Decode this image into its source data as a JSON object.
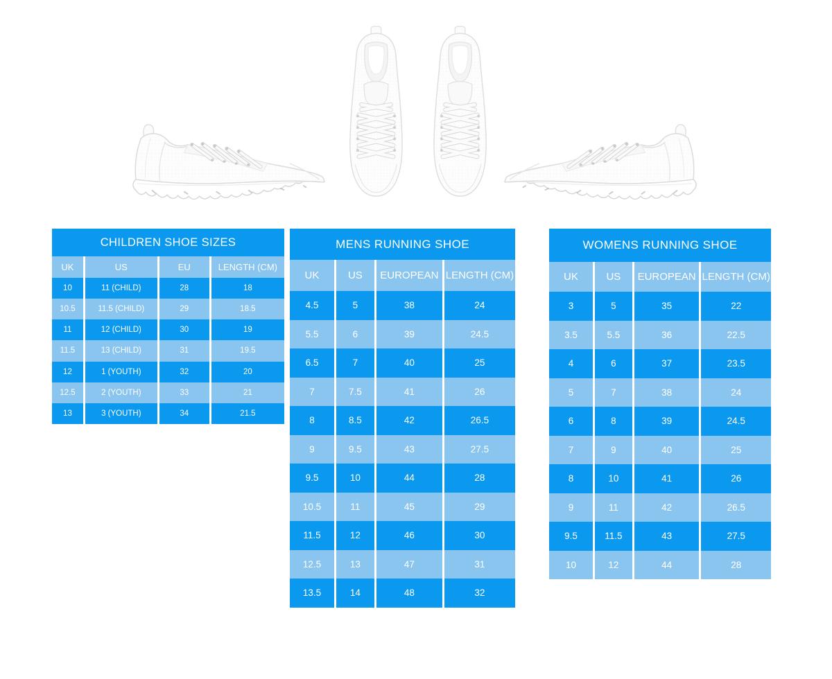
{
  "page": {
    "background": "#ffffff",
    "description": "Shoe size chart sheet with white running-shoe product photos"
  },
  "colors": {
    "primary_blue": "#0b99f0",
    "light_blue": "#8ac5ef",
    "table_text": "#ffffff",
    "separator": "#ffffff"
  },
  "gallery": {
    "left_shoe_alt": "white running shoe side view, toe facing right",
    "center_pair_alt": "pair of white running shoes, top view, toes down",
    "right_shoe_alt": "white running shoe side view, toe facing left"
  },
  "tables": [
    {
      "id": "children",
      "title": "CHILDREN SHOE SIZES",
      "headers": [
        "UK",
        "US",
        "EU",
        "LENGTH (CM)"
      ],
      "rows": [
        [
          "10",
          "11 (CHILD)",
          "28",
          "18"
        ],
        [
          "10.5",
          "11.5 (CHILD)",
          "29",
          "18.5"
        ],
        [
          "11",
          "12 (CHILD)",
          "30",
          "19"
        ],
        [
          "11.5",
          "13 (CHILD)",
          "31",
          "19.5"
        ],
        [
          "12",
          "1 (YOUTH)",
          "32",
          "20"
        ],
        [
          "12.5",
          "2 (YOUTH)",
          "33",
          "21"
        ],
        [
          "13",
          "3 (YOUTH)",
          "34",
          "21.5"
        ]
      ]
    },
    {
      "id": "mens",
      "title": "MENS RUNNING SHOE",
      "headers": [
        "UK",
        "US",
        "EUROPEAN",
        "LENGTH (CM)"
      ],
      "rows": [
        [
          "4.5",
          "5",
          "38",
          "24"
        ],
        [
          "5.5",
          "6",
          "39",
          "24.5"
        ],
        [
          "6.5",
          "7",
          "40",
          "25"
        ],
        [
          "7",
          "7.5",
          "41",
          "26"
        ],
        [
          "8",
          "8.5",
          "42",
          "26.5"
        ],
        [
          "9",
          "9.5",
          "43",
          "27.5"
        ],
        [
          "9.5",
          "10",
          "44",
          "28"
        ],
        [
          "10.5",
          "11",
          "45",
          "29"
        ],
        [
          "11.5",
          "12",
          "46",
          "30"
        ],
        [
          "12.5",
          "13",
          "47",
          "31"
        ],
        [
          "13.5",
          "14",
          "48",
          "32"
        ]
      ]
    },
    {
      "id": "womens",
      "title": "WOMENS RUNNING SHOE",
      "headers": [
        "UK",
        "US",
        "EUROPEAN",
        "LENGTH (CM)"
      ],
      "rows": [
        [
          "3",
          "5",
          "35",
          "22"
        ],
        [
          "3.5",
          "5.5",
          "36",
          "22.5"
        ],
        [
          "4",
          "6",
          "37",
          "23.5"
        ],
        [
          "5",
          "7",
          "38",
          "24"
        ],
        [
          "6",
          "8",
          "39",
          "24.5"
        ],
        [
          "7",
          "9",
          "40",
          "25"
        ],
        [
          "8",
          "10",
          "41",
          "26"
        ],
        [
          "9",
          "11",
          "42",
          "26.5"
        ],
        [
          "9.5",
          "11.5",
          "43",
          "27.5"
        ],
        [
          "10",
          "12",
          "44",
          "28"
        ]
      ]
    }
  ]
}
